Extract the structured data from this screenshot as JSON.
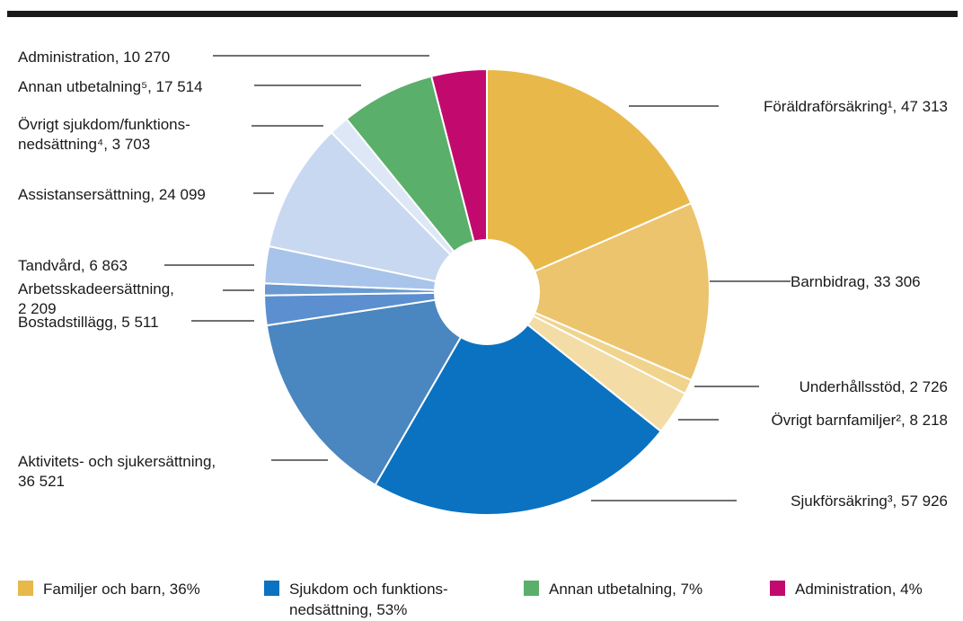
{
  "chart_data": {
    "type": "donut",
    "categories": [
      "Föräldraförsäkring¹",
      "Barnbidrag",
      "Underhållsstöd",
      "Övrigt barnfamiljer²",
      "Sjukförsäkring³",
      "Aktivitets- och sjukersättning",
      "Bostadstillägg",
      "Arbetsskadeersättning",
      "Tandvård",
      "Assistansersättning",
      "Övrigt sjukdom/funktionsnedsättning⁴",
      "Annan utbetalning⁵",
      "Administration"
    ],
    "values": [
      47313,
      33306,
      2726,
      8218,
      57926,
      36521,
      5511,
      2209,
      6863,
      24099,
      3703,
      17514,
      10270
    ],
    "value_labels": [
      [
        "Föräldraförsäkring¹, 47 313"
      ],
      [
        "Barnbidrag, 33 306"
      ],
      [
        "Underhållsstöd, 2 726"
      ],
      [
        "Övrigt barnfamiljer², 8 218"
      ],
      [
        "Sjukförsäkring³, 57 926"
      ],
      [
        "Aktivitets- och sjukersättning,",
        "36 521"
      ],
      [
        "Bostadstillägg, 5 511"
      ],
      [
        "Arbetsskadeersättning,",
        "2 209"
      ],
      [
        "Tandvård, 6 863"
      ],
      [
        "Assistansersättning, 24 099"
      ],
      [
        "Övrigt sjukdom/funktions-",
        "nedsättning⁴, 3 703"
      ],
      [
        "Annan utbetalning⁵, 17 514"
      ],
      [
        "Administration, 10 270"
      ]
    ],
    "colors": [
      "#e8b84a",
      "#ecc46e",
      "#f0d48e",
      "#f3dca6",
      "#0a72c0",
      "#4a86c0",
      "#5b8fd0",
      "#6a9ad0",
      "#a8c4ea",
      "#c8d8f0",
      "#dde7f5",
      "#5aaf6a",
      "#c20a6e"
    ],
    "legend": [
      {
        "name": [
          "Familjer och barn, 36%"
        ],
        "color": "#e8b84a"
      },
      {
        "name": [
          "Sjukdom och funktions-",
          "nedsättning, 53%"
        ],
        "color": "#0a72c0"
      },
      {
        "name": [
          "Annan utbetalning, 7%"
        ],
        "color": "#5aaf6a"
      },
      {
        "name": [
          "Administration, 4%"
        ],
        "color": "#c20a6e"
      }
    ]
  }
}
